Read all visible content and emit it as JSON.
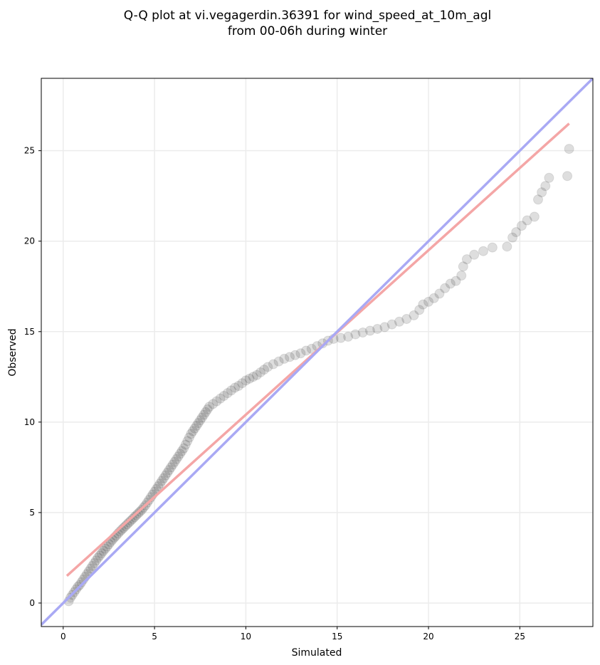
{
  "chart_data": {
    "type": "scatter",
    "title": [
      "Q-Q plot at vi.vegagerdin.36391 for wind_speed_at_10m_agl",
      "from 00-06h during winter"
    ],
    "xlabel": "Simulated",
    "ylabel": "Observed",
    "xlim": [
      -1.2,
      29.0
    ],
    "ylim": [
      -1.3,
      29.0
    ],
    "xticks": [
      0,
      5,
      10,
      15,
      20,
      25
    ],
    "yticks": [
      0,
      5,
      10,
      15,
      20,
      25
    ],
    "x_tick_labels": [
      "0",
      "5",
      "10",
      "15",
      "20",
      "25"
    ],
    "y_tick_labels": [
      "0",
      "5",
      "10",
      "15",
      "20",
      "25"
    ],
    "grid": true,
    "point_color": "#333333",
    "series": [
      {
        "type": "scatter",
        "points": [
          [
            0.3,
            0.1
          ],
          [
            0.4,
            0.3
          ],
          [
            0.5,
            0.45
          ],
          [
            0.6,
            0.6
          ],
          [
            0.7,
            0.75
          ],
          [
            0.8,
            0.9
          ],
          [
            0.9,
            1.0
          ],
          [
            1.0,
            1.15
          ],
          [
            1.1,
            1.3
          ],
          [
            1.2,
            1.45
          ],
          [
            1.3,
            1.6
          ],
          [
            1.4,
            1.75
          ],
          [
            1.5,
            1.9
          ],
          [
            1.6,
            2.05
          ],
          [
            1.7,
            2.2
          ],
          [
            1.8,
            2.35
          ],
          [
            1.9,
            2.5
          ],
          [
            2.0,
            2.62
          ],
          [
            2.1,
            2.75
          ],
          [
            2.2,
            2.88
          ],
          [
            2.3,
            3.0
          ],
          [
            2.4,
            3.12
          ],
          [
            2.5,
            3.25
          ],
          [
            2.6,
            3.38
          ],
          [
            2.7,
            3.5
          ],
          [
            2.8,
            3.62
          ],
          [
            2.9,
            3.72
          ],
          [
            3.0,
            3.84
          ],
          [
            3.1,
            3.95
          ],
          [
            3.2,
            4.05
          ],
          [
            3.3,
            4.15
          ],
          [
            3.4,
            4.25
          ],
          [
            3.5,
            4.35
          ],
          [
            3.6,
            4.45
          ],
          [
            3.7,
            4.55
          ],
          [
            3.8,
            4.65
          ],
          [
            3.9,
            4.75
          ],
          [
            4.0,
            4.85
          ],
          [
            4.1,
            4.95
          ],
          [
            4.2,
            5.05
          ],
          [
            4.3,
            5.15
          ],
          [
            4.4,
            5.28
          ],
          [
            4.5,
            5.4
          ],
          [
            4.6,
            5.55
          ],
          [
            4.7,
            5.7
          ],
          [
            4.8,
            5.85
          ],
          [
            4.9,
            6.0
          ],
          [
            5.0,
            6.15
          ],
          [
            5.1,
            6.3
          ],
          [
            5.2,
            6.45
          ],
          [
            5.3,
            6.6
          ],
          [
            5.4,
            6.75
          ],
          [
            5.5,
            6.9
          ],
          [
            5.6,
            7.05
          ],
          [
            5.7,
            7.2
          ],
          [
            5.8,
            7.35
          ],
          [
            5.9,
            7.5
          ],
          [
            6.0,
            7.65
          ],
          [
            6.1,
            7.8
          ],
          [
            6.2,
            7.95
          ],
          [
            6.3,
            8.1
          ],
          [
            6.4,
            8.25
          ],
          [
            6.5,
            8.4
          ],
          [
            6.6,
            8.55
          ],
          [
            6.7,
            8.75
          ],
          [
            6.8,
            8.95
          ],
          [
            6.9,
            9.15
          ],
          [
            7.0,
            9.35
          ],
          [
            7.1,
            9.5
          ],
          [
            7.2,
            9.65
          ],
          [
            7.3,
            9.8
          ],
          [
            7.4,
            9.95
          ],
          [
            7.5,
            10.1
          ],
          [
            7.6,
            10.25
          ],
          [
            7.7,
            10.4
          ],
          [
            7.8,
            10.55
          ],
          [
            7.9,
            10.7
          ],
          [
            8.0,
            10.85
          ],
          [
            8.2,
            11.0
          ],
          [
            8.4,
            11.15
          ],
          [
            8.6,
            11.3
          ],
          [
            8.8,
            11.45
          ],
          [
            9.0,
            11.6
          ],
          [
            9.2,
            11.75
          ],
          [
            9.4,
            11.9
          ],
          [
            9.6,
            12.0
          ],
          [
            9.8,
            12.15
          ],
          [
            10.0,
            12.3
          ],
          [
            10.2,
            12.4
          ],
          [
            10.4,
            12.5
          ],
          [
            10.6,
            12.6
          ],
          [
            10.8,
            12.75
          ],
          [
            11.0,
            12.9
          ],
          [
            11.2,
            13.05
          ],
          [
            11.5,
            13.2
          ],
          [
            11.8,
            13.35
          ],
          [
            12.1,
            13.5
          ],
          [
            12.4,
            13.6
          ],
          [
            12.7,
            13.7
          ],
          [
            13.0,
            13.8
          ],
          [
            13.3,
            13.95
          ],
          [
            13.6,
            14.05
          ],
          [
            13.9,
            14.2
          ],
          [
            14.2,
            14.35
          ],
          [
            14.5,
            14.5
          ],
          [
            14.8,
            14.6
          ],
          [
            15.2,
            14.65
          ],
          [
            15.6,
            14.72
          ],
          [
            16.0,
            14.85
          ],
          [
            16.4,
            14.95
          ],
          [
            16.8,
            15.05
          ],
          [
            17.2,
            15.15
          ],
          [
            17.6,
            15.25
          ],
          [
            18.0,
            15.4
          ],
          [
            18.4,
            15.55
          ],
          [
            18.8,
            15.7
          ],
          [
            19.2,
            15.9
          ],
          [
            19.5,
            16.2
          ],
          [
            19.7,
            16.5
          ],
          [
            20.0,
            16.65
          ],
          [
            20.3,
            16.85
          ],
          [
            20.6,
            17.1
          ],
          [
            20.9,
            17.4
          ],
          [
            21.2,
            17.65
          ],
          [
            21.5,
            17.8
          ],
          [
            21.8,
            18.1
          ],
          [
            21.9,
            18.6
          ],
          [
            22.1,
            19.0
          ],
          [
            22.5,
            19.25
          ],
          [
            23.0,
            19.45
          ],
          [
            23.5,
            19.65
          ],
          [
            24.3,
            19.7
          ],
          [
            24.6,
            20.2
          ],
          [
            24.8,
            20.5
          ],
          [
            25.1,
            20.85
          ],
          [
            25.4,
            21.15
          ],
          [
            25.8,
            21.35
          ],
          [
            26.0,
            22.3
          ],
          [
            26.2,
            22.7
          ],
          [
            26.4,
            23.05
          ],
          [
            26.6,
            23.5
          ],
          [
            27.6,
            23.6
          ],
          [
            27.7,
            25.1
          ]
        ]
      },
      {
        "type": "line",
        "color": "#f4a6a6",
        "x": [
          0.2,
          27.7
        ],
        "y": [
          1.5,
          26.5
        ]
      },
      {
        "type": "line",
        "color": "#a9a9f4",
        "x": [
          -1.2,
          29.0
        ],
        "y": [
          -1.2,
          29.0
        ]
      }
    ]
  }
}
